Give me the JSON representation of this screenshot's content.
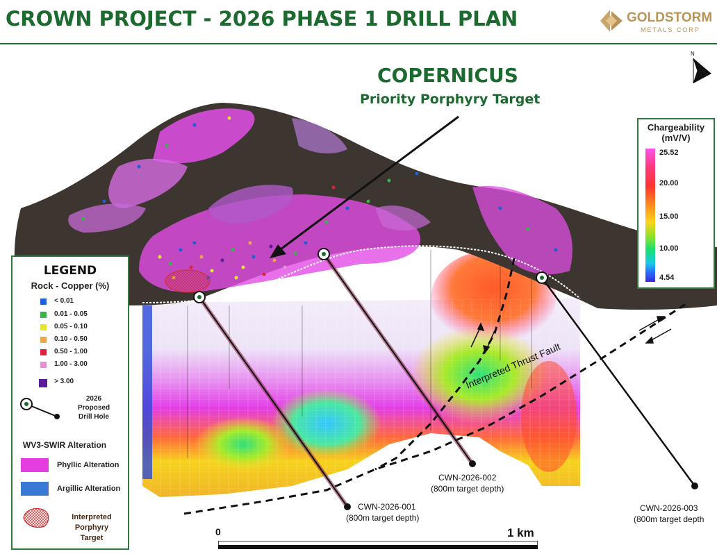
{
  "header": {
    "title": "CROWN PROJECT - 2026 PHASE 1 DRILL PLAN",
    "logo_name": "GOLDSTORM",
    "logo_sub": "METALS CORP"
  },
  "target": {
    "name": "COPERNICUS",
    "subtitle": "Priority Porphyry Target"
  },
  "north_arrow": {
    "label": "N"
  },
  "chargeability_scale": {
    "title_line1": "Chargeability",
    "title_line2": "(mV/V)",
    "ticks": [
      "25.52",
      "20.00",
      "15.00",
      "10.00",
      "4.54"
    ]
  },
  "legend": {
    "title": "LEGEND",
    "rock_copper_title": "Rock - Copper (%)",
    "rock_copper_items": [
      {
        "label": "< 0.01",
        "color": "#1f5fd6"
      },
      {
        "label": "0.01 - 0.05",
        "color": "#37b34a"
      },
      {
        "label": "0.05 - 0.10",
        "color": "#e6e632"
      },
      {
        "label": "0.10 - 0.50",
        "color": "#f0a64a"
      },
      {
        "label": "0.50 - 1.00",
        "color": "#e0203c"
      },
      {
        "label": "1.00 - 3.00",
        "color": "#e98fd8"
      },
      {
        "label": "> 3.00",
        "color": "#5a1a9a"
      }
    ],
    "drill_hole_label_line1": "2026",
    "drill_hole_label_line2": "Proposed",
    "drill_hole_label_line3": "Drill Hole",
    "alteration_title": "WV3-SWIR Alteration",
    "phyllic_label": "Phyllic Alteration",
    "phyllic_color": "#e53ee0",
    "argillic_label": "Argillic Alteration",
    "argillic_color": "#3a78d6",
    "porphyry_line1": "Interpreted",
    "porphyry_line2": "Porphyry",
    "porphyry_line3": "Target"
  },
  "drill_holes": [
    {
      "id": "CWN-2026-001",
      "depth": "(800m target depth)"
    },
    {
      "id": "CWN-2026-002",
      "depth": "(800m target depth)"
    },
    {
      "id": "CWN-2026-003",
      "depth": "(800m target depth"
    }
  ],
  "fault_label": "Interpreted Thrust Fault",
  "scale_bar": {
    "start": "0",
    "end": "1 km"
  }
}
